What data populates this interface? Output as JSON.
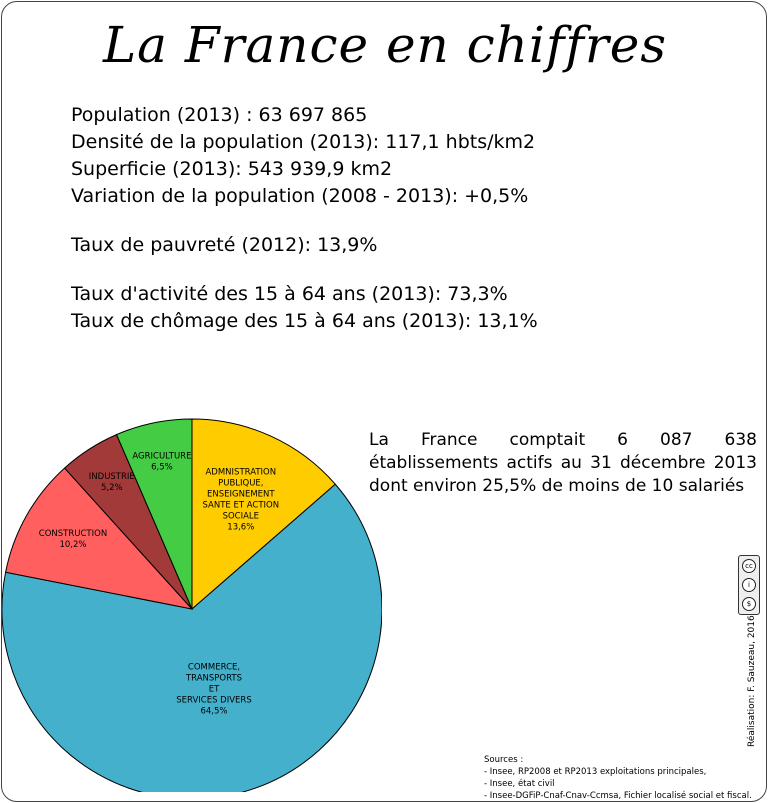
{
  "title": "La France en chiffres",
  "stats": {
    "population": "Population (2013) : 63 697 865",
    "densite": "Densité de la population (2013): 117,1 hbts/km2",
    "superficie": "Superficie (2013): 543 939,9 km2",
    "variation": "Variation de la population (2008 - 2013): +0,5%",
    "pauvrete": "Taux de pauvreté (2012): 13,9%",
    "activite": "Taux d'activité des 15 à 64 ans (2013): 73,3%",
    "chomage": "Taux de chômage des 15 à 64 ans (2013): 13,1%"
  },
  "note": "La France comptait 6 087 638 établissements actifs au 31 décembre 2013 dont environ 25,5% de moins de 10 salariés",
  "credit": "Réalisation: F. Sauzeau, 2016",
  "license_icons": [
    "cc-icon",
    "by-icon",
    "nc-icon"
  ],
  "sources": {
    "heading": "Sources :",
    "lines": [
      "- Insee, RP2008 et RP2013 exploitations principales,",
      "- Insee, état civil",
      "- Insee-DGFiP-Cnaf-Cnav-Ccmsa, Fichier localisé social et fiscal."
    ]
  },
  "chart_data": {
    "type": "pie",
    "title": "",
    "slices": [
      {
        "label": [
          "ADMNISTRATION",
          "PUBLIQUE,",
          "ENSEIGNEMENT",
          "SANTE ET ACTION",
          "SOCIALE"
        ],
        "value_label": "13,6%",
        "value": 13.6,
        "color": "#FFCC00"
      },
      {
        "label": [
          "COMMERCE,",
          "TRANSPORTS",
          "ET",
          "SERVICES DIVERS"
        ],
        "value_label": "64,5%",
        "value": 64.5,
        "color": "#44B0CC"
      },
      {
        "label": [
          "CONSTRUCTION"
        ],
        "value_label": "10,2%",
        "value": 10.2,
        "color": "#FF5F5F"
      },
      {
        "label": [
          "INDUSTRIE"
        ],
        "value_label": "5,2%",
        "value": 5.2,
        "color": "#A33A3A"
      },
      {
        "label": [
          "AGRICULTURE"
        ],
        "value_label": "6,5%",
        "value": 6.5,
        "color": "#44CC44"
      }
    ]
  }
}
